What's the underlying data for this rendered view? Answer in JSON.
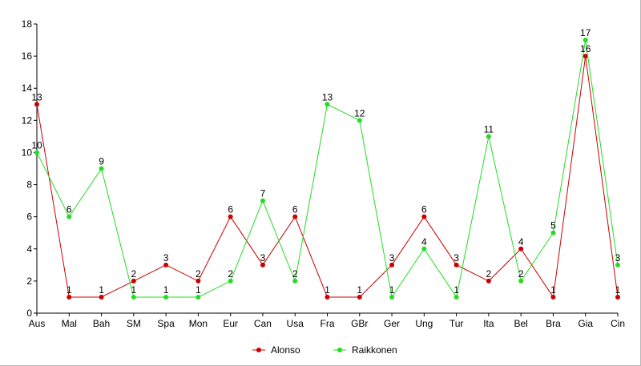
{
  "chart_data": {
    "type": "line",
    "title": "",
    "xlabel": "",
    "ylabel": "",
    "categories": [
      "Aus",
      "Mal",
      "Bah",
      "SM",
      "Spa",
      "Mon",
      "Eur",
      "Can",
      "Usa",
      "Fra",
      "GBr",
      "Ger",
      "Ung",
      "Tur",
      "Ita",
      "Bel",
      "Bra",
      "Gia",
      "Cin"
    ],
    "ylim": [
      0,
      18
    ],
    "yticks": [
      0,
      2,
      4,
      6,
      8,
      10,
      12,
      14,
      16,
      18
    ],
    "grid": false,
    "legend_position": "bottom-center",
    "series": [
      {
        "name": "Alonso",
        "color": "#cc0000",
        "values": [
          13,
          1,
          1,
          2,
          3,
          2,
          6,
          3,
          6,
          1,
          1,
          3,
          6,
          3,
          2,
          4,
          1,
          16,
          1
        ]
      },
      {
        "name": "Raikkonen",
        "color": "#22dd22",
        "values": [
          10,
          6,
          9,
          1,
          1,
          1,
          2,
          7,
          2,
          13,
          12,
          1,
          4,
          1,
          11,
          2,
          5,
          17,
          3
        ]
      }
    ]
  }
}
